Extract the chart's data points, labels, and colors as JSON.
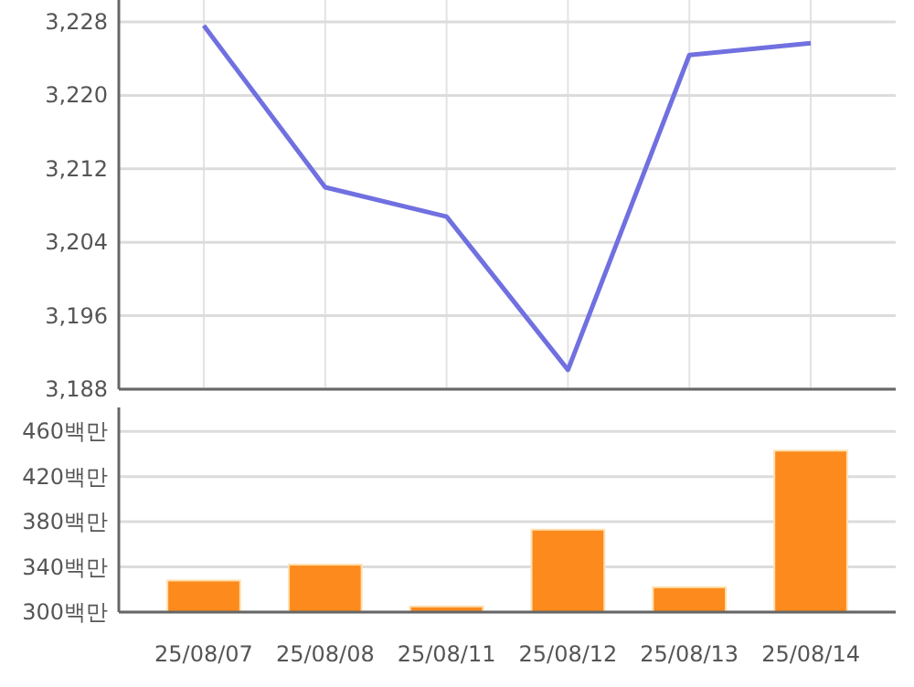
{
  "chart_data": [
    {
      "type": "line",
      "categories": [
        null,
        null,
        null,
        null,
        null,
        null
      ],
      "series": [
        {
          "color": "#7070e0",
          "values": [
            3227.6,
            3210,
            3206.8,
            3190.1,
            3224.4,
            3225.7
          ]
        }
      ],
      "ylim": [
        3188,
        3230
      ],
      "yticks": [
        {
          "value": 3188,
          "label": "3,188"
        },
        {
          "value": 3196,
          "label": "3,196"
        },
        {
          "value": 3204,
          "label": "3,204"
        },
        {
          "value": 3212,
          "label": "3,212"
        },
        {
          "value": 3220,
          "label": "3,220"
        },
        {
          "value": 3228,
          "label": "3,228"
        }
      ],
      "grid": true,
      "tick_labels": "y",
      "marker": "none",
      "line_style": "solid"
    },
    {
      "type": "bar",
      "categories": [
        "25/08/07",
        "25/08/08",
        "25/08/11",
        "25/08/12",
        "25/08/13",
        "25/08/14"
      ],
      "series": [
        {
          "color": "#fd8a1c",
          "values": [
            328,
            342,
            305,
            373,
            322,
            443
          ]
        }
      ],
      "ylim": [
        300,
        478
      ],
      "yticks": [
        {
          "value": 300,
          "label": "300백만"
        },
        {
          "value": 340,
          "label": "340백만"
        },
        {
          "value": 380,
          "label": "380백만"
        },
        {
          "value": 420,
          "label": "420백만"
        },
        {
          "value": 460,
          "label": "460백만"
        }
      ],
      "grid": "y"
    }
  ]
}
